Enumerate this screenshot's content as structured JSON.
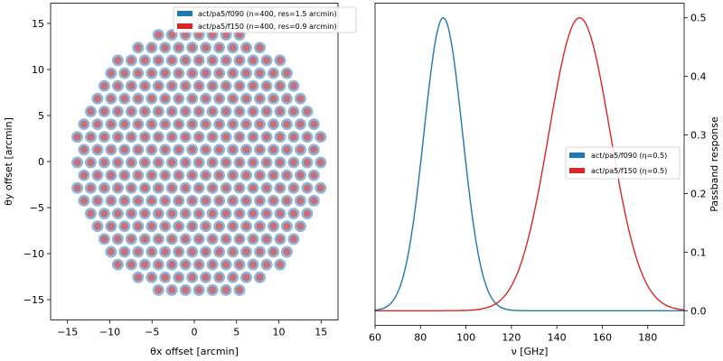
{
  "chart_data": [
    {
      "type": "scatter",
      "title": "",
      "xlabel": "θx offset [arcmin]",
      "ylabel": "θy offset [arcmin]",
      "xlim": [
        -17,
        17
      ],
      "ylim": [
        -17.2,
        17.2
      ],
      "xticks": [
        -15,
        -10,
        -5,
        0,
        5,
        10,
        15
      ],
      "yticks": [
        -15,
        -10,
        -5,
        0,
        5,
        10,
        15
      ],
      "legend_position": "top-right",
      "pattern": "approximately circular hexagonal grid of detector beams; each position holds one f090 beam (blue, larger) and one f150 beam (red, smaller)",
      "series": [
        {
          "name": "act/pa5/f090 (n=400, res=1.5 arcmin)",
          "color": "#1f77b4",
          "count": 400,
          "resolution_arcmin": 1.5
        },
        {
          "name": "act/pa5/f150 (n=400, res=0.9 arcmin)",
          "color": "#d62728",
          "count": 400,
          "resolution_arcmin": 0.9
        }
      ]
    },
    {
      "type": "line",
      "title": "",
      "xlabel": "ν [GHz]",
      "ylabel": "Passband response",
      "xlim": [
        60,
        196
      ],
      "ylim": [
        -0.025,
        0.525
      ],
      "xticks": [
        60,
        80,
        100,
        120,
        140,
        160,
        180
      ],
      "yticks": [
        0.0,
        0.1,
        0.2,
        0.3,
        0.4,
        0.5
      ],
      "legend_position": "center-right",
      "series": [
        {
          "name": "act/pa5/f090 (η=0.5)",
          "color": "#1f77b4",
          "center_ghz": 90,
          "peak": 0.5,
          "sigma_ghz": 8.5
        },
        {
          "name": "act/pa5/f150 (η=0.5)",
          "color": "#d62728",
          "center_ghz": 150,
          "peak": 0.5,
          "sigma_ghz": 13.5
        }
      ]
    }
  ]
}
